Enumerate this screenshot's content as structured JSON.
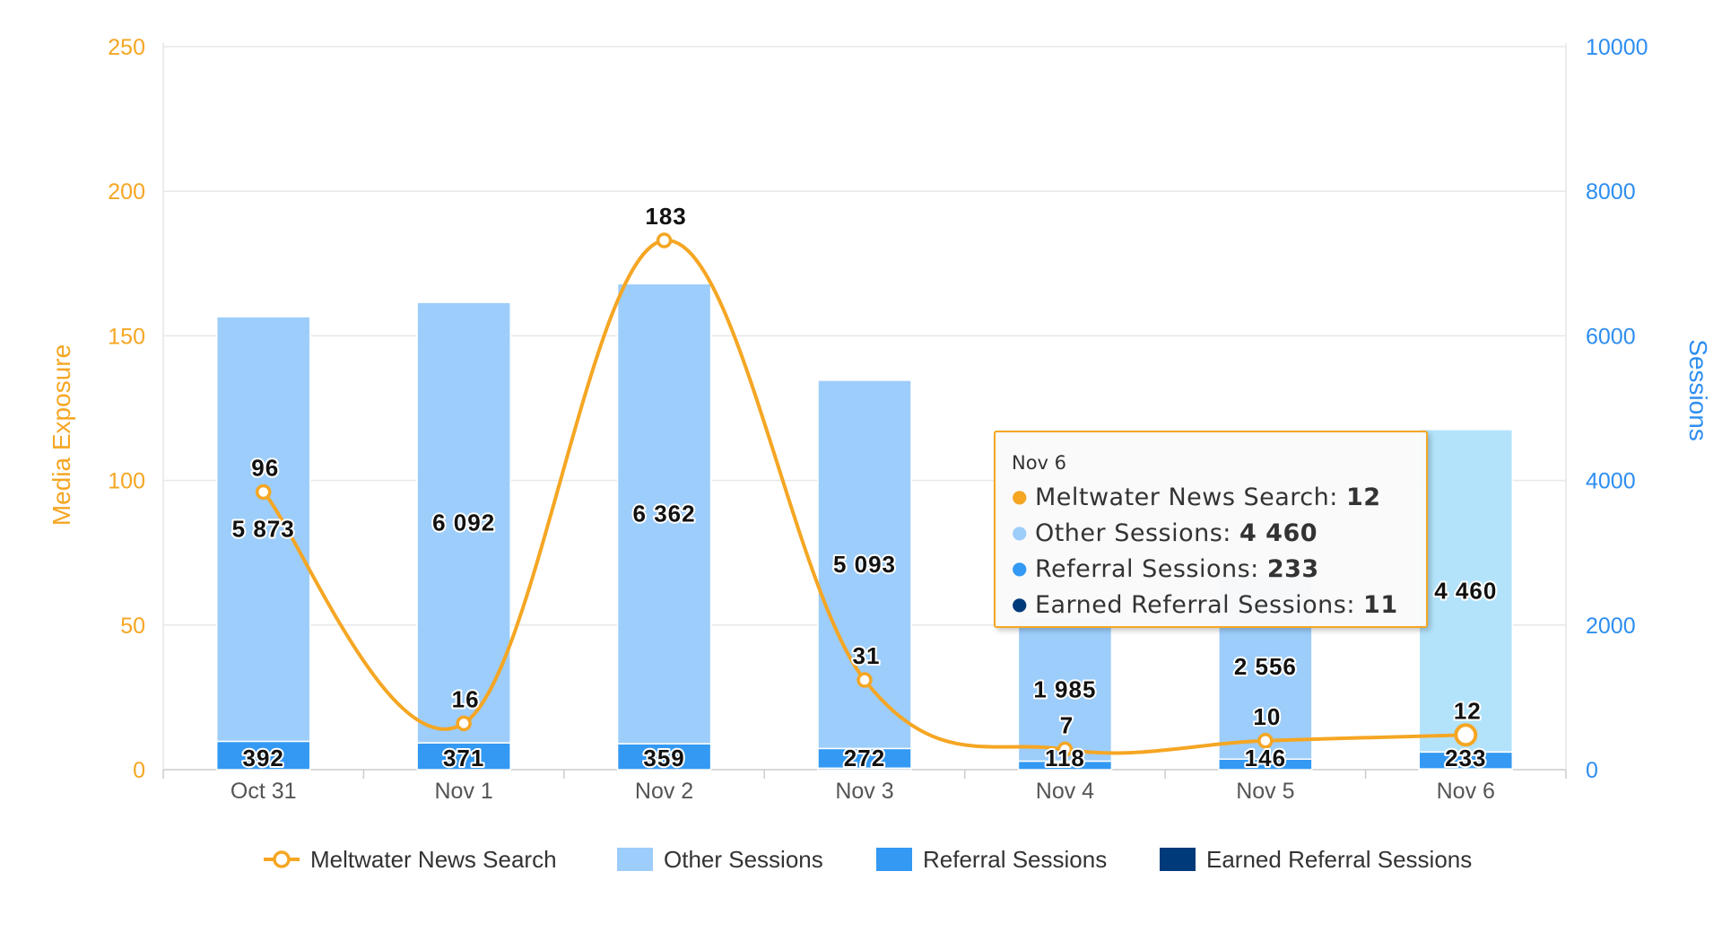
{
  "chart_data": {
    "type": "bar",
    "categories": [
      "Oct 31",
      "Nov 1",
      "Nov 2",
      "Nov 3",
      "Nov 4",
      "Nov 5",
      "Nov 6"
    ],
    "series": [
      {
        "name": "Meltwater News Search",
        "type": "line",
        "axis": "left",
        "color": "#f5a623",
        "values": [
          96,
          16,
          183,
          31,
          7,
          10,
          12
        ]
      },
      {
        "name": "Other Sessions",
        "type": "stacked-bar",
        "axis": "right",
        "color": "#9dcdfa",
        "labels": [
          "5 873",
          "6 092",
          "6 362",
          "5 093",
          "1 985",
          "2 556",
          "4 460"
        ],
        "values": [
          5873,
          6092,
          6362,
          5093,
          1985,
          2556,
          4460
        ]
      },
      {
        "name": "Referral Sessions",
        "type": "stacked-bar",
        "axis": "right",
        "color": "#3399f3",
        "labels": [
          "392",
          "371",
          "359",
          "272",
          "118",
          "146",
          "233"
        ],
        "values": [
          392,
          371,
          359,
          272,
          118,
          146,
          233
        ]
      },
      {
        "name": "Earned Referral Sessions",
        "type": "stacked-bar",
        "axis": "right",
        "color": "#003a7a",
        "values": [
          0,
          0,
          0,
          21,
          0,
          0,
          11
        ]
      }
    ],
    "y_left": {
      "label": "Media Exposure",
      "ticks": [
        "0",
        "50",
        "100",
        "150",
        "200",
        "250"
      ],
      "min": 0,
      "max": 250
    },
    "y_right": {
      "label": "Sessions",
      "ticks": [
        "0",
        "2000",
        "4000",
        "6000",
        "8000",
        "10000"
      ],
      "min": 0,
      "max": 10000
    },
    "grid": true,
    "legend_position": "bottom",
    "highlighted_category": "Nov 6",
    "tooltip": {
      "title": "Nov 6",
      "rows": [
        {
          "name": "Meltwater News Search",
          "value": "12",
          "color": "#f5a623"
        },
        {
          "name": "Other Sessions",
          "value": "4 460",
          "color": "#9dcdfa"
        },
        {
          "name": "Referral Sessions",
          "value": "233",
          "color": "#3399f3"
        },
        {
          "name": "Earned Referral Sessions",
          "value": "11",
          "color": "#003a7a"
        }
      ]
    }
  }
}
